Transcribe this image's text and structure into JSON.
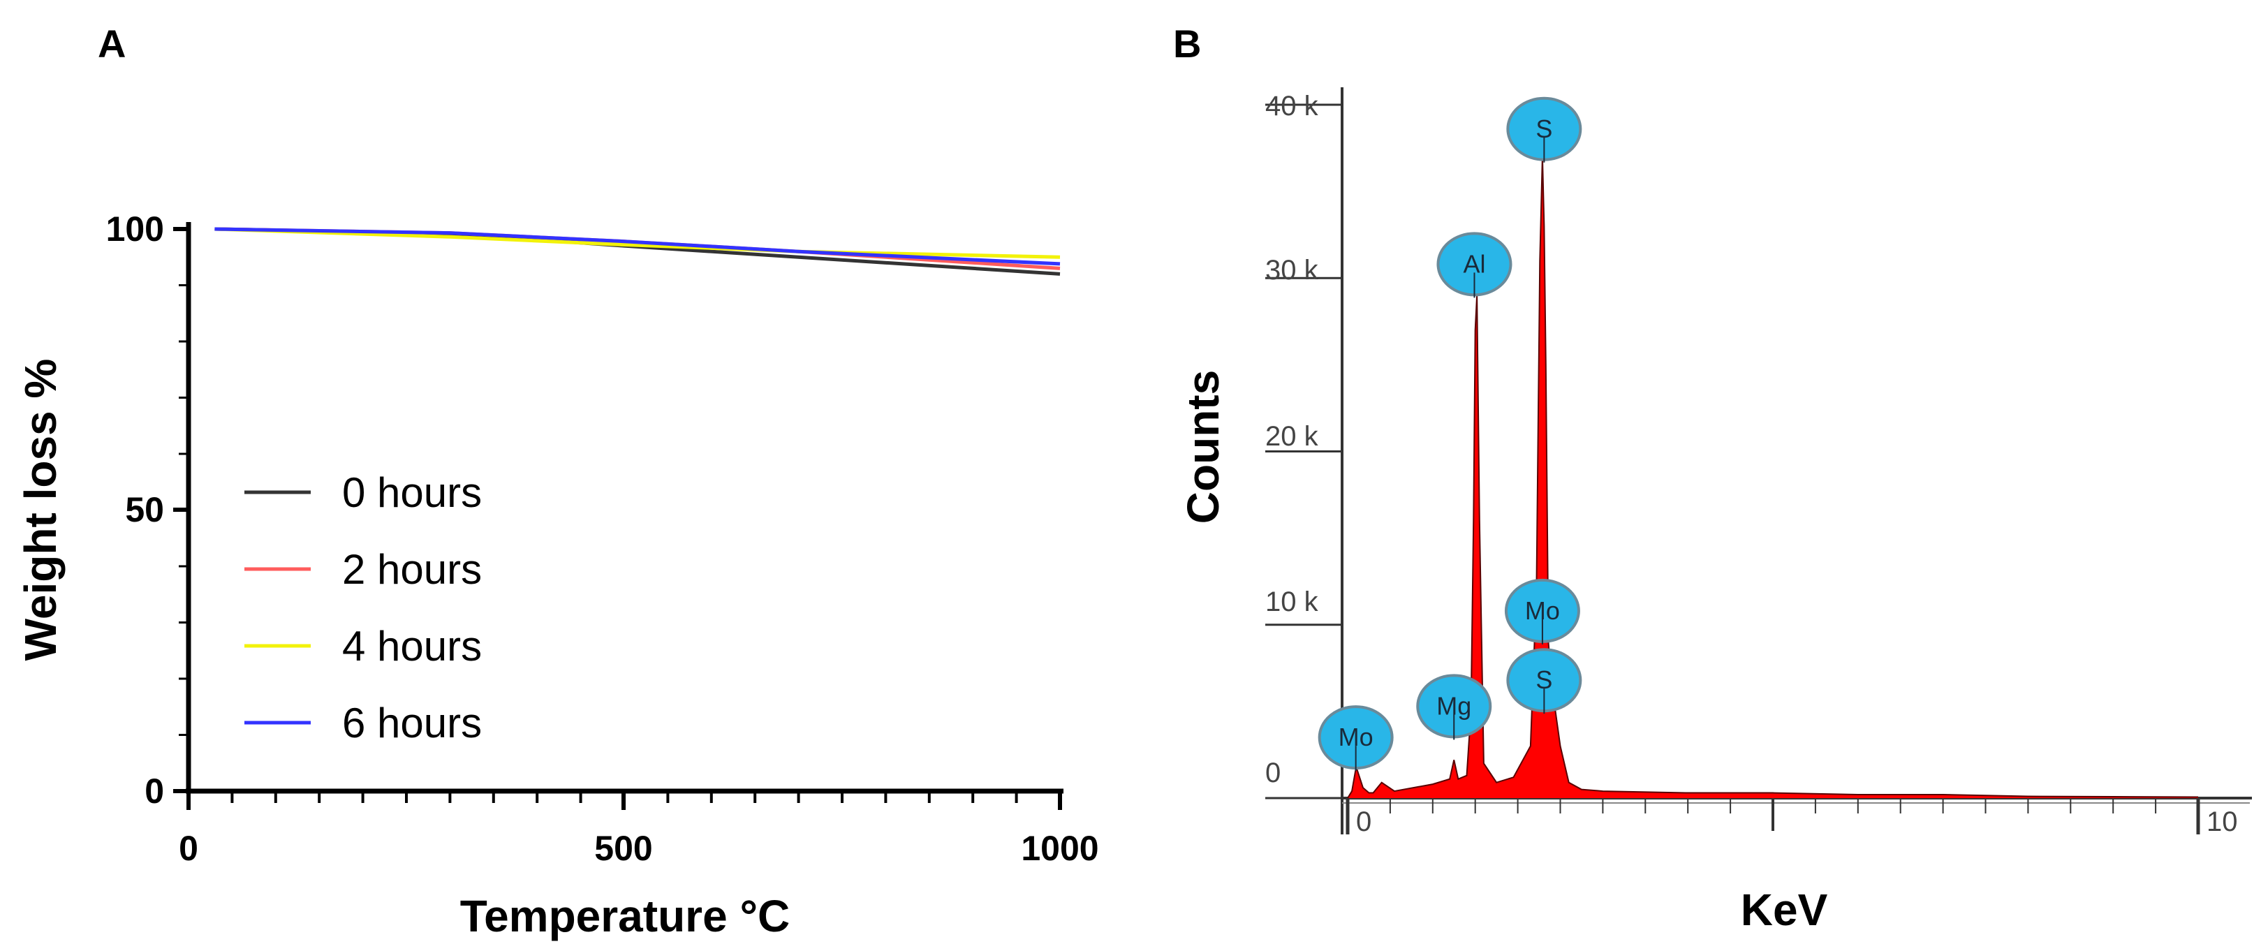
{
  "chart_data": [
    {
      "panel": "A",
      "type": "line",
      "title": "",
      "xlabel": "Temperature °C",
      "ylabel": "Weight loss %",
      "xlim": [
        0,
        1000
      ],
      "ylim": [
        0,
        100
      ],
      "xticks": [
        "0",
        "500",
        "1000"
      ],
      "yticks": [
        "0",
        "50",
        "100"
      ],
      "series": [
        {
          "name": "0 hours",
          "color": "#333333",
          "x": [
            30,
            300,
            500,
            700,
            1000
          ],
          "y": [
            100,
            99.2,
            97.0,
            95.0,
            92.0
          ]
        },
        {
          "name": "2 hours",
          "color": "#ff5c5c",
          "x": [
            30,
            300,
            500,
            700,
            1000
          ],
          "y": [
            100,
            99.3,
            97.8,
            96.0,
            93.0
          ]
        },
        {
          "name": "4 hours",
          "color": "#f2f20a",
          "x": [
            30,
            300,
            500,
            700,
            1000
          ],
          "y": [
            100,
            98.6,
            97.2,
            96.0,
            95.0
          ]
        },
        {
          "name": "6 hours",
          "color": "#3333ff",
          "x": [
            30,
            300,
            500,
            700,
            1000
          ],
          "y": [
            100,
            99.3,
            97.8,
            96.0,
            93.8
          ]
        }
      ],
      "legend_position": "center-left"
    },
    {
      "panel": "B",
      "type": "area",
      "title": "",
      "xlabel": "KeV",
      "ylabel": "Counts",
      "xlim": [
        0,
        10
      ],
      "ylim": [
        0,
        42000
      ],
      "xticks": [
        "0",
        "10"
      ],
      "yticks": [
        "0",
        "10 k",
        "20 k",
        "30 k",
        "40 k"
      ],
      "fill_color": "#ff0000",
      "spectrum": {
        "x": [
          0,
          0.05,
          0.1,
          0.18,
          0.25,
          0.3,
          0.4,
          0.55,
          1.0,
          1.2,
          1.25,
          1.3,
          1.4,
          1.45,
          1.48,
          1.5,
          1.52,
          1.55,
          1.6,
          1.75,
          1.95,
          2.15,
          2.22,
          2.26,
          2.29,
          2.31,
          2.33,
          2.36,
          2.4,
          2.5,
          2.6,
          2.75,
          3.0,
          4.0,
          5.0,
          6.0,
          7.0,
          7.5,
          8.0,
          9.0,
          10.0
        ],
        "y": [
          0,
          400,
          1800,
          600,
          300,
          300,
          900,
          400,
          800,
          1100,
          2200,
          1100,
          1300,
          5000,
          16000,
          27000,
          29000,
          16000,
          2000,
          900,
          1200,
          3000,
          12000,
          31000,
          37000,
          33000,
          25000,
          9000,
          6500,
          3000,
          900,
          500,
          400,
          300,
          300,
          200,
          200,
          150,
          100,
          80,
          60
        ]
      },
      "peaks": [
        {
          "label": "Mo",
          "x": 0.03,
          "y": 3500
        },
        {
          "label": "Mg",
          "x": 1.25,
          "y": 5300
        },
        {
          "label": "Al",
          "x": 1.49,
          "y": 30800
        },
        {
          "label": "S",
          "x": 2.31,
          "y": 38600
        },
        {
          "label": "Mo",
          "x": 2.29,
          "y": 10800
        },
        {
          "label": "S",
          "x": 2.31,
          "y": 6800
        }
      ],
      "peak_marker_color": "#29b6e8"
    }
  ]
}
